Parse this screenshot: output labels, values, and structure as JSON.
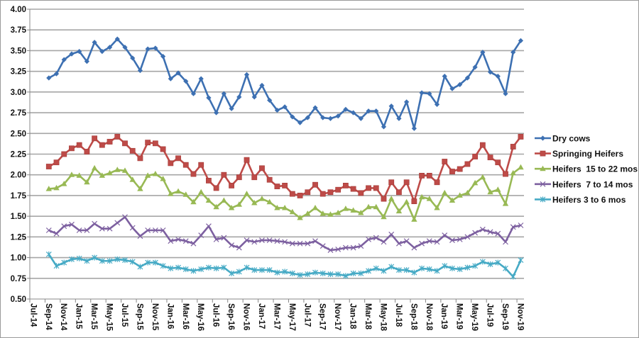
{
  "chart_data": {
    "type": "line",
    "title": "",
    "xlabel": "",
    "ylabel": "",
    "ylim": [
      0.5,
      4.0
    ],
    "yticks": [
      "0.50",
      "0.75",
      "1.00",
      "1.25",
      "1.50",
      "1.75",
      "2.00",
      "2.25",
      "2.50",
      "2.75",
      "3.00",
      "3.25",
      "3.50",
      "3.75",
      "4.00"
    ],
    "xtick_labels": [
      "Jul-14",
      "Sep-14",
      "Nov-14",
      "Jan-15",
      "Mar-15",
      "May-15",
      "Jul-15",
      "Sep-15",
      "Nov-15",
      "Jan-16",
      "Mar-16",
      "May-16",
      "Jul-16",
      "Sep-16",
      "Nov-16",
      "Jan-17",
      "Mar-17",
      "May-17",
      "Jul-17",
      "Sep-17",
      "Nov-17",
      "Jan-18",
      "Mar-18",
      "May-18",
      "Jul-18",
      "Sep-18",
      "Nov-18",
      "Jan-19",
      "Mar-19",
      "May-19",
      "Jul-19",
      "Sep-19",
      "Nov-19"
    ],
    "x_start": "Sep-14",
    "x_end": "Nov-19",
    "grid": "horizontal",
    "legend_position": "right",
    "series": [
      {
        "name": "Dry cows",
        "color": "#3d70b2",
        "marker": "diamond",
        "values": [
          3.17,
          3.22,
          3.39,
          3.46,
          3.49,
          3.37,
          3.6,
          3.49,
          3.54,
          3.64,
          3.54,
          3.41,
          3.26,
          3.52,
          3.53,
          3.43,
          3.16,
          3.23,
          3.13,
          2.98,
          3.16,
          2.93,
          2.75,
          2.98,
          2.8,
          2.94,
          3.21,
          2.94,
          3.08,
          2.9,
          2.78,
          2.82,
          2.7,
          2.63,
          2.69,
          2.81,
          2.69,
          2.68,
          2.71,
          2.79,
          2.75,
          2.68,
          2.77,
          2.77,
          2.58,
          2.83,
          2.68,
          2.88,
          2.56,
          2.99,
          2.98,
          2.85,
          3.19,
          3.04,
          3.09,
          3.17,
          3.3,
          3.48,
          3.24,
          3.19,
          2.98,
          3.48,
          3.62
        ]
      },
      {
        "name": "Springing Heifers",
        "color": "#be4b48",
        "marker": "square",
        "values": [
          2.1,
          2.15,
          2.25,
          2.32,
          2.36,
          2.28,
          2.44,
          2.36,
          2.4,
          2.46,
          2.38,
          2.29,
          2.2,
          2.39,
          2.38,
          2.31,
          2.14,
          2.2,
          2.12,
          2.01,
          2.12,
          1.93,
          1.84,
          2.0,
          1.87,
          1.97,
          2.18,
          1.97,
          2.08,
          1.94,
          1.86,
          1.87,
          1.77,
          1.75,
          1.79,
          1.88,
          1.77,
          1.79,
          1.82,
          1.87,
          1.83,
          1.78,
          1.84,
          1.84,
          1.71,
          1.91,
          1.79,
          1.91,
          1.68,
          1.99,
          1.99,
          1.91,
          2.16,
          2.04,
          2.07,
          2.13,
          2.22,
          2.36,
          2.21,
          2.15,
          2.01,
          2.34,
          2.46
        ]
      },
      {
        "name": "Heifers  15 to 22 mos",
        "color": "#98b954",
        "marker": "triangle",
        "values": [
          1.83,
          1.84,
          1.89,
          2.0,
          1.99,
          1.91,
          2.08,
          1.99,
          2.02,
          2.06,
          2.05,
          1.94,
          1.83,
          1.99,
          2.01,
          1.95,
          1.77,
          1.8,
          1.76,
          1.67,
          1.79,
          1.69,
          1.61,
          1.69,
          1.6,
          1.64,
          1.77,
          1.66,
          1.71,
          1.67,
          1.6,
          1.6,
          1.55,
          1.48,
          1.53,
          1.6,
          1.53,
          1.52,
          1.54,
          1.59,
          1.57,
          1.54,
          1.61,
          1.61,
          1.49,
          1.71,
          1.56,
          1.67,
          1.46,
          1.73,
          1.71,
          1.6,
          1.78,
          1.69,
          1.75,
          1.78,
          1.9,
          1.97,
          1.79,
          1.82,
          1.65,
          2.02,
          2.09
        ]
      },
      {
        "name": "Heifers  7 to 14 mos",
        "color": "#7d60a0",
        "marker": "x",
        "values": [
          1.33,
          1.29,
          1.38,
          1.4,
          1.33,
          1.33,
          1.41,
          1.35,
          1.35,
          1.42,
          1.49,
          1.36,
          1.26,
          1.33,
          1.33,
          1.33,
          1.2,
          1.22,
          1.2,
          1.17,
          1.27,
          1.38,
          1.22,
          1.24,
          1.15,
          1.12,
          1.21,
          1.19,
          1.21,
          1.21,
          1.2,
          1.19,
          1.17,
          1.17,
          1.17,
          1.2,
          1.14,
          1.09,
          1.1,
          1.12,
          1.12,
          1.14,
          1.22,
          1.24,
          1.19,
          1.28,
          1.17,
          1.2,
          1.12,
          1.17,
          1.2,
          1.19,
          1.27,
          1.21,
          1.22,
          1.25,
          1.3,
          1.34,
          1.31,
          1.29,
          1.19,
          1.37,
          1.39
        ]
      },
      {
        "name": "Heifers 3 to 6 mos",
        "color": "#46aac5",
        "marker": "star",
        "values": [
          1.04,
          0.9,
          0.94,
          0.98,
          0.99,
          0.96,
          1.0,
          0.96,
          0.96,
          0.98,
          0.97,
          0.95,
          0.89,
          0.94,
          0.94,
          0.9,
          0.87,
          0.88,
          0.86,
          0.84,
          0.86,
          0.88,
          0.87,
          0.88,
          0.81,
          0.83,
          0.88,
          0.85,
          0.85,
          0.85,
          0.82,
          0.83,
          0.81,
          0.79,
          0.8,
          0.82,
          0.81,
          0.8,
          0.8,
          0.78,
          0.81,
          0.81,
          0.84,
          0.87,
          0.84,
          0.89,
          0.85,
          0.85,
          0.82,
          0.87,
          0.86,
          0.84,
          0.9,
          0.87,
          0.86,
          0.88,
          0.9,
          0.95,
          0.92,
          0.94,
          0.87,
          0.77,
          0.97
        ]
      }
    ]
  }
}
